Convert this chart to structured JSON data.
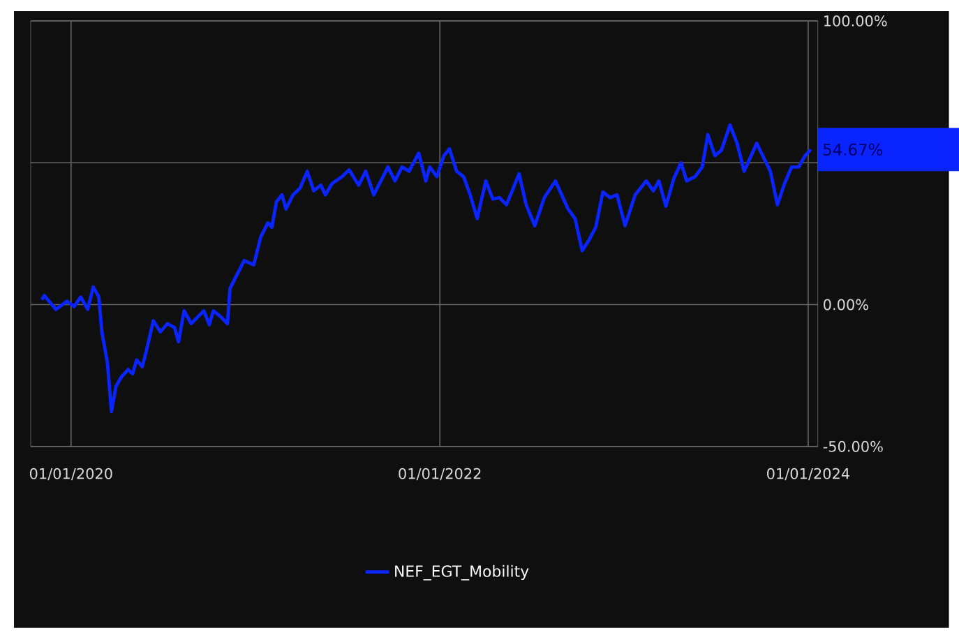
{
  "chart_data": {
    "type": "line",
    "x": [
      "2019-11-04",
      "2019-11-09",
      "2019-12-02",
      "2019-12-24",
      "2020-01-07",
      "2020-01-20",
      "2020-02-03",
      "2020-02-14",
      "2020-02-25",
      "2020-03-02",
      "2020-03-13",
      "2020-03-21",
      "2020-03-30",
      "2020-04-10",
      "2020-04-23",
      "2020-05-02",
      "2020-05-10",
      "2020-05-21",
      "2020-05-29",
      "2020-06-12",
      "2020-06-26",
      "2020-07-10",
      "2020-07-24",
      "2020-08-01",
      "2020-08-12",
      "2020-08-26",
      "2020-09-09",
      "2020-09-20",
      "2020-10-01",
      "2020-10-09",
      "2020-10-23",
      "2020-11-06",
      "2020-11-11",
      "2020-11-25",
      "2020-12-09",
      "2020-12-28",
      "2021-01-11",
      "2021-01-25",
      "2021-02-02",
      "2021-02-11",
      "2021-02-22",
      "2021-03-02",
      "2021-03-16",
      "2021-03-30",
      "2021-04-13",
      "2021-04-26",
      "2021-05-10",
      "2021-05-19",
      "2021-06-01",
      "2021-06-21",
      "2021-07-05",
      "2021-07-24",
      "2021-08-07",
      "2021-08-23",
      "2021-09-06",
      "2021-09-20",
      "2021-10-04",
      "2021-10-18",
      "2021-11-01",
      "2021-11-20",
      "2021-12-04",
      "2021-12-12",
      "2021-12-26",
      "2022-01-09",
      "2022-01-20",
      "2022-02-03",
      "2022-02-17",
      "2022-03-02",
      "2022-03-16",
      "2022-04-02",
      "2022-04-16",
      "2022-04-29",
      "2022-05-13",
      "2022-06-07",
      "2022-06-21",
      "2022-07-08",
      "2022-07-27",
      "2022-08-18",
      "2022-09-12",
      "2022-09-26",
      "2022-10-10",
      "2022-10-24",
      "2022-11-06",
      "2022-11-20",
      "2022-12-04",
      "2022-12-18",
      "2023-01-03",
      "2023-01-23",
      "2023-02-14",
      "2023-02-28",
      "2023-03-11",
      "2023-03-25",
      "2023-04-10",
      "2023-04-24",
      "2023-05-05",
      "2023-05-22",
      "2023-06-05",
      "2023-06-16",
      "2023-06-30",
      "2023-07-13",
      "2023-07-30",
      "2023-08-13",
      "2023-08-27",
      "2023-09-21",
      "2023-10-04",
      "2023-10-18",
      "2023-11-01",
      "2023-11-15",
      "2023-11-29",
      "2023-12-13",
      "2023-12-26",
      "2024-01-06"
    ],
    "series": [
      {
        "name": "NEF_EGT_Mobility",
        "color": "#0a24ff",
        "values": [
          1.7,
          3.2,
          -1.7,
          1.2,
          -0.7,
          2.7,
          -1.7,
          6.2,
          2.7,
          -9.6,
          -20.4,
          -37.7,
          -28.8,
          -25.4,
          -22.9,
          -24.4,
          -19.5,
          -21.9,
          -16.5,
          -5.7,
          -9.6,
          -6.7,
          -8.1,
          -13.1,
          -2.2,
          -6.7,
          -4.2,
          -2.2,
          -7.1,
          -2.2,
          -4.2,
          -6.7,
          5.7,
          10.6,
          15.5,
          14.0,
          23.9,
          28.8,
          27.3,
          36.2,
          38.7,
          33.7,
          38.7,
          41.1,
          47.0,
          40.1,
          42.1,
          38.7,
          42.6,
          45.1,
          47.5,
          42.1,
          47.0,
          38.7,
          43.6,
          48.5,
          43.6,
          48.5,
          47.0,
          53.4,
          43.6,
          48.5,
          45.1,
          52.5,
          54.9,
          47.0,
          45.1,
          38.7,
          30.3,
          43.6,
          37.2,
          37.7,
          35.2,
          46.1,
          35.2,
          27.8,
          37.7,
          43.6,
          33.7,
          30.3,
          19.0,
          22.9,
          27.3,
          39.7,
          37.7,
          38.7,
          27.8,
          38.7,
          43.6,
          40.1,
          43.6,
          34.7,
          44.6,
          50.0,
          43.6,
          45.1,
          48.5,
          59.9,
          52.5,
          54.4,
          63.3,
          56.9,
          47.0,
          56.9,
          52.0,
          47.0,
          35.2,
          42.6,
          48.5,
          48.5,
          52.5,
          54.67
        ]
      }
    ],
    "xlim": [
      "2019-10-13",
      "2024-01-20"
    ],
    "xticks": [
      {
        "value": "2020-01-01",
        "label": "01/01/2020"
      },
      {
        "value": "2022-01-01",
        "label": "01/01/2022"
      },
      {
        "value": "2024-01-01",
        "label": "01/01/2024"
      }
    ],
    "ylim": [
      -50,
      100
    ],
    "yticks": [
      {
        "value": -50,
        "label": "-50.00%"
      },
      {
        "value": 0,
        "label": "0.00%"
      },
      {
        "value": 50,
        "label": null
      },
      {
        "value": 100,
        "label": "100.00%"
      }
    ],
    "annotations": [
      {
        "text": "54.67%",
        "x": "2024-01-06",
        "y": 54.67
      }
    ],
    "grid": true,
    "legend": "bottom",
    "line_style": "solid",
    "marker": "none"
  }
}
